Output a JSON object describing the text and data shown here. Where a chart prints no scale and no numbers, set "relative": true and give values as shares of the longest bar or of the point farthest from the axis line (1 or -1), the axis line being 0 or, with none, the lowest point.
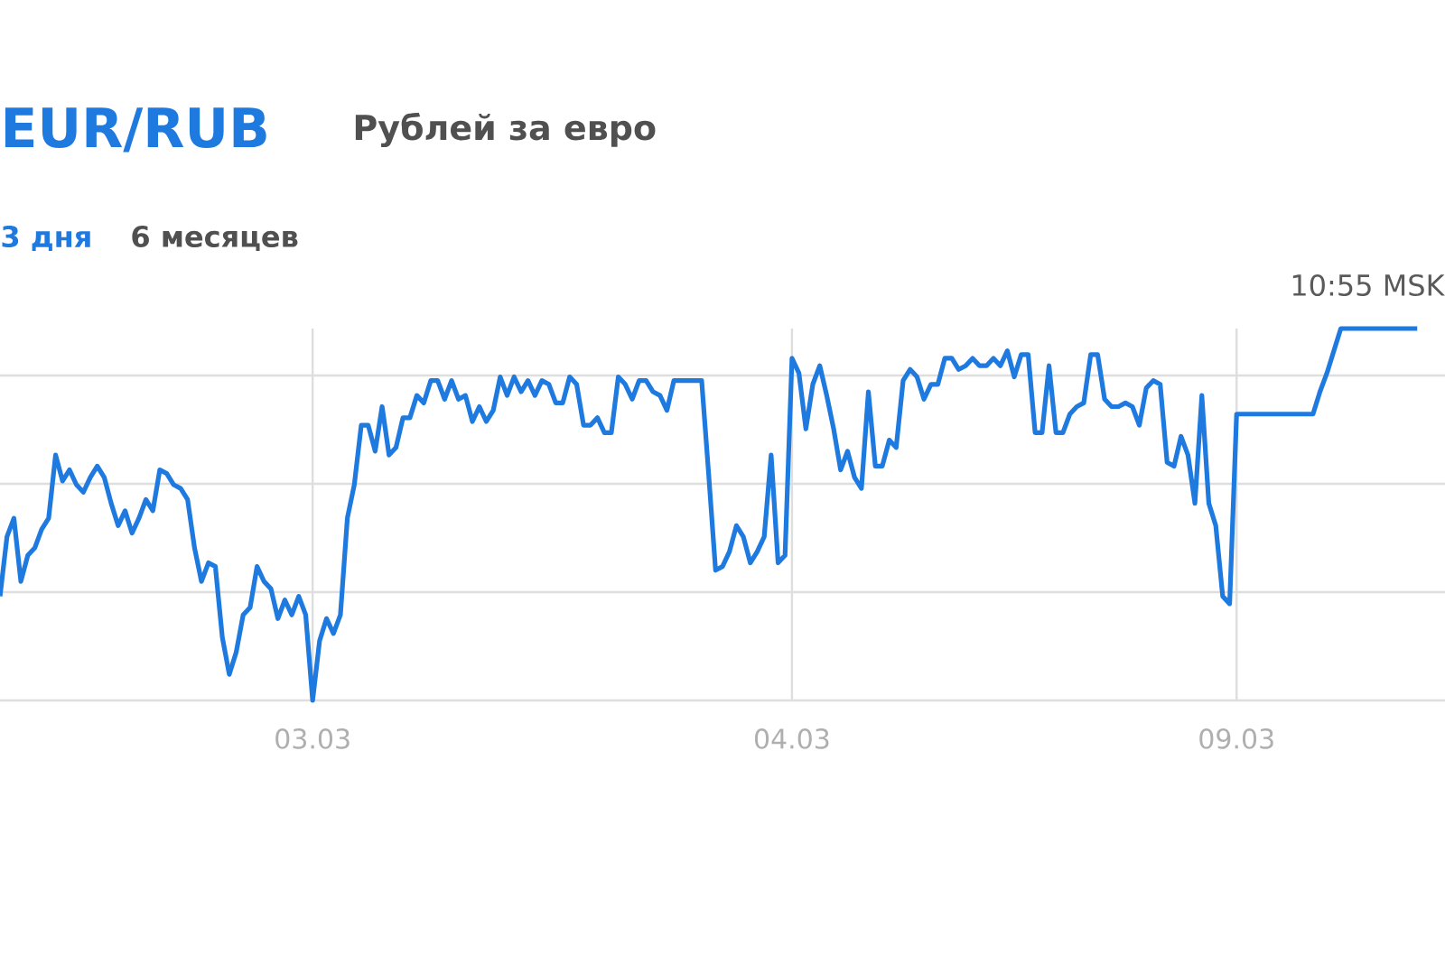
{
  "chart_data": {
    "type": "line",
    "title": "EUR/RUB",
    "subtitle": "Рублей за евро",
    "annotations": [
      "3 дня",
      "6 месяцев",
      "10:55 MSK"
    ],
    "categories": [
      null,
      null,
      null,
      null,
      null,
      null,
      null,
      null,
      null,
      null,
      null,
      null,
      null,
      null,
      null,
      null,
      null,
      null,
      null,
      null,
      null,
      null,
      null,
      null,
      null,
      null,
      null,
      null,
      null,
      null,
      null,
      null,
      null,
      null,
      null,
      null,
      null,
      null,
      null,
      null,
      null,
      null,
      null,
      null,
      null,
      "03.03",
      null,
      null,
      null,
      null,
      null,
      null,
      null,
      null,
      null,
      null,
      null,
      null,
      null,
      null,
      null,
      null,
      null,
      null,
      null,
      null,
      null,
      null,
      null,
      null,
      null,
      null,
      null,
      null,
      null,
      null,
      null,
      null,
      null,
      null,
      null,
      null,
      null,
      null,
      null,
      null,
      null,
      null,
      null,
      null,
      null,
      null,
      null,
      null,
      null,
      null,
      null,
      null,
      null,
      null,
      null,
      null,
      null,
      null,
      null,
      null,
      null,
      null,
      null,
      null,
      null,
      null,
      null,
      null,
      "04.03",
      null,
      null,
      null,
      null,
      null,
      null,
      null,
      null,
      null,
      null,
      null,
      null,
      null,
      null,
      null,
      null,
      null,
      null,
      null,
      null,
      null,
      null,
      null,
      null,
      null,
      null,
      null,
      null,
      null,
      null,
      null,
      null,
      null,
      null,
      null,
      null,
      null,
      null,
      null,
      null,
      null,
      null,
      null,
      null,
      null,
      null,
      null,
      null,
      null,
      null,
      null,
      null,
      null,
      null,
      null,
      null,
      null,
      null,
      null,
      null,
      null,
      null,
      null,
      "09.03",
      null,
      null,
      null,
      null,
      null,
      null,
      null,
      null,
      null,
      null,
      null,
      null,
      null,
      null,
      null,
      null,
      null,
      null,
      null,
      null,
      null,
      null,
      null,
      null,
      null,
      null
    ],
    "values": [
      0.28,
      0.44,
      0.49,
      0.32,
      0.39,
      0.41,
      0.46,
      0.49,
      0.66,
      0.59,
      0.62,
      0.58,
      0.56,
      0.6,
      0.63,
      0.6,
      0.53,
      0.47,
      0.51,
      0.45,
      0.49,
      0.54,
      0.51,
      0.62,
      0.61,
      0.58,
      0.57,
      0.54,
      0.41,
      0.32,
      0.37,
      0.36,
      0.17,
      0.07,
      0.13,
      0.23,
      0.25,
      0.36,
      0.32,
      0.3,
      0.22,
      0.27,
      0.23,
      0.28,
      0.23,
      0,
      0.16,
      0.22,
      0.18,
      0.23,
      0.49,
      0.58,
      0.74,
      0.74,
      0.67,
      0.79,
      0.66,
      0.68,
      0.76,
      0.76,
      0.82,
      0.8,
      0.86,
      0.86,
      0.81,
      0.86,
      0.81,
      0.82,
      0.75,
      0.79,
      0.75,
      0.78,
      0.87,
      0.82,
      0.87,
      0.83,
      0.86,
      0.82,
      0.86,
      0.85,
      0.8,
      0.8,
      0.87,
      0.85,
      0.74,
      0.74,
      0.76,
      0.72,
      0.72,
      0.87,
      0.85,
      0.81,
      0.86,
      0.86,
      0.83,
      0.82,
      0.78,
      0.86,
      0.86,
      0.86,
      0.86,
      0.86,
      0.61,
      0.35,
      0.36,
      0.4,
      0.47,
      0.44,
      0.37,
      0.4,
      0.44,
      0.66,
      0.37,
      0.39,
      0.92,
      0.88,
      0.73,
      0.85,
      0.9,
      0.82,
      0.73,
      0.62,
      0.67,
      0.6,
      0.57,
      0.83,
      0.63,
      0.63,
      0.7,
      0.68,
      0.86,
      0.89,
      0.87,
      0.81,
      0.85,
      0.85,
      0.92,
      0.92,
      0.89,
      0.9,
      0.92,
      0.9,
      0.9,
      0.92,
      0.9,
      0.94,
      0.87,
      0.93,
      0.93,
      0.72,
      0.72,
      0.9,
      0.72,
      0.72,
      0.77,
      0.79,
      0.8,
      0.93,
      0.93,
      0.81,
      0.79,
      0.79,
      0.8,
      0.79,
      0.74,
      0.84,
      0.86,
      0.85,
      0.64,
      0.63,
      0.71,
      0.66,
      0.53,
      0.82,
      0.53,
      0.47,
      0.28,
      0.26,
      0.77,
      0.77,
      0.77,
      0.77,
      0.77,
      0.77,
      0.77,
      0.77,
      0.77,
      0.77,
      0.77,
      0.77,
      0.83,
      0.88,
      0.94,
      1.0,
      1.0,
      1.0,
      1.0,
      1.0,
      1.0,
      1.0,
      1.0,
      1.0,
      1.0,
      1.0,
      1.0
    ],
    "color": "#1f7ae0",
    "relative": true,
    "grid": true
  }
}
